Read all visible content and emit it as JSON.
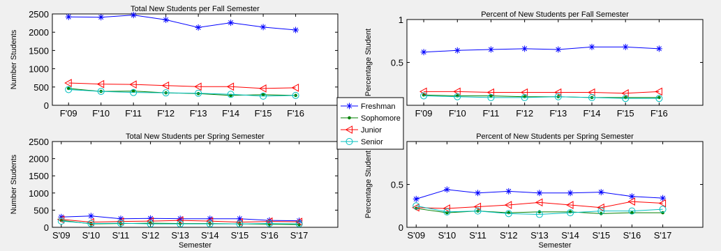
{
  "legend": {
    "placement": "center",
    "entries": [
      {
        "name": "Freshman",
        "color": "#0000ff",
        "marker": "star"
      },
      {
        "name": "Sophomore",
        "color": "#008000",
        "marker": "dot"
      },
      {
        "name": "Junior",
        "color": "#ff0000",
        "marker": "triangle-left"
      },
      {
        "name": "Senior",
        "color": "#00bfbf",
        "marker": "circle"
      }
    ]
  },
  "chart_data": [
    {
      "id": "fall-total",
      "type": "line",
      "title": "Total New Students per Fall Semester",
      "xlabel": "",
      "ylabel": "Number Students",
      "categories": [
        "F'09",
        "F'10",
        "F'11",
        "F'12",
        "F'13",
        "F'14",
        "F'15",
        "F'16"
      ],
      "x": [
        0.5,
        1,
        1.5,
        2,
        2.5,
        3,
        3.5,
        4,
        4.5,
        5,
        5.5,
        6,
        6.5,
        7,
        7.5,
        8
      ],
      "xlim": [
        0,
        8.8
      ],
      "ylim": [
        0,
        2500
      ],
      "yticks": [
        0,
        500,
        1000,
        1500,
        2000,
        2500
      ],
      "grid": false,
      "series": [
        {
          "name": "Freshman",
          "x": [
            0.5,
            1.5,
            2.5,
            3.5,
            4.5,
            5.5,
            6.5,
            7.5
          ],
          "values": [
            2420,
            2410,
            2470,
            2340,
            2130,
            2260,
            2140,
            2060
          ]
        },
        {
          "name": "Sophomore",
          "x": [
            0.5,
            1.5,
            2.5,
            3.5,
            4.5,
            5.5,
            6.5,
            7.5
          ],
          "values": [
            460,
            380,
            390,
            340,
            320,
            270,
            290,
            270
          ]
        },
        {
          "name": "Junior",
          "x": [
            0.5,
            1.5,
            2.5,
            3.5,
            4.5,
            5.5,
            6.5,
            7.5
          ],
          "values": [
            610,
            580,
            570,
            540,
            510,
            510,
            460,
            480
          ]
        },
        {
          "name": "Senior",
          "x": [
            0.5,
            1.5,
            2.5,
            3.5,
            4.5,
            5.5,
            6.5,
            7.5
          ],
          "values": [
            430,
            380,
            350,
            340,
            330,
            300,
            250,
            270
          ]
        }
      ]
    },
    {
      "id": "fall-percent",
      "type": "line",
      "title": "Percent of New Students per Fall Semester",
      "xlabel": "",
      "ylabel": "Percentage Student",
      "categories": [
        "F'09",
        "F'10",
        "F'11",
        "F'12",
        "F'13",
        "F'14",
        "F'15",
        "F'16"
      ],
      "xlim": [
        0,
        8.8
      ],
      "ylim": [
        0,
        1
      ],
      "yticks": [
        0,
        0.5,
        1
      ],
      "grid": false,
      "series": [
        {
          "name": "Freshman",
          "x": [
            0.5,
            1.5,
            2.5,
            3.5,
            4.5,
            5.5,
            6.5,
            7.5
          ],
          "values": [
            0.62,
            0.64,
            0.65,
            0.66,
            0.65,
            0.68,
            0.68,
            0.66
          ]
        },
        {
          "name": "Sophomore",
          "x": [
            0.5,
            1.5,
            2.5,
            3.5,
            4.5,
            5.5,
            6.5,
            7.5
          ],
          "values": [
            0.12,
            0.11,
            0.11,
            0.1,
            0.1,
            0.09,
            0.09,
            0.09
          ]
        },
        {
          "name": "Junior",
          "x": [
            0.5,
            1.5,
            2.5,
            3.5,
            4.5,
            5.5,
            6.5,
            7.5
          ],
          "values": [
            0.16,
            0.16,
            0.15,
            0.15,
            0.15,
            0.15,
            0.14,
            0.16
          ]
        },
        {
          "name": "Senior",
          "x": [
            0.5,
            1.5,
            2.5,
            3.5,
            4.5,
            5.5,
            6.5,
            7.5
          ],
          "values": [
            0.11,
            0.1,
            0.09,
            0.09,
            0.1,
            0.09,
            0.08,
            0.08
          ]
        }
      ]
    },
    {
      "id": "spring-total",
      "type": "line",
      "title": "Total New Students per Spring Semester",
      "xlabel": "Semester",
      "ylabel": "Number Students",
      "categories": [
        "S'09",
        "S'10",
        "S'11",
        "S'12",
        "S'13",
        "S'14",
        "S'15",
        "S'16",
        "S'17"
      ],
      "xlim": [
        0,
        9.6
      ],
      "ylim": [
        0,
        2500
      ],
      "yticks": [
        0,
        500,
        1000,
        1500,
        2000,
        2500
      ],
      "grid": false,
      "series": [
        {
          "name": "Freshman",
          "x": [
            0.3,
            1.3,
            2.3,
            3.3,
            4.3,
            5.3,
            6.3,
            7.3,
            8.3
          ],
          "values": [
            300,
            330,
            250,
            260,
            250,
            250,
            250,
            200,
            190
          ]
        },
        {
          "name": "Sophomore",
          "x": [
            0.3,
            1.3,
            2.3,
            3.3,
            4.3,
            5.3,
            6.3,
            7.3,
            8.3
          ],
          "values": [
            200,
            100,
            110,
            120,
            110,
            110,
            100,
            90,
            80
          ]
        },
        {
          "name": "Junior",
          "x": [
            0.3,
            1.3,
            2.3,
            3.3,
            4.3,
            5.3,
            6.3,
            7.3,
            8.3
          ],
          "values": [
            230,
            150,
            170,
            180,
            200,
            180,
            150,
            170,
            160
          ]
        },
        {
          "name": "Senior",
          "x": [
            0.3,
            1.3,
            2.3,
            3.3,
            4.3,
            5.3,
            6.3,
            7.3,
            8.3
          ],
          "values": [
            180,
            110,
            120,
            100,
            100,
            100,
            100,
            110,
            100
          ]
        }
      ]
    },
    {
      "id": "spring-percent",
      "type": "line",
      "title": "Percent of New Students per Spring Semester",
      "xlabel": "Semester",
      "ylabel": "Percentage Student",
      "categories": [
        "S'09",
        "S'10",
        "S'11",
        "S'12",
        "S'13",
        "S'14",
        "S'15",
        "S'16",
        "S'17"
      ],
      "xlim": [
        0,
        9.6
      ],
      "ylim": [
        0,
        1
      ],
      "yticks": [
        0,
        0.5,
        1
      ],
      "grid": false,
      "series": [
        {
          "name": "Freshman",
          "x": [
            0.3,
            1.3,
            2.3,
            3.3,
            4.3,
            5.3,
            6.3,
            7.3,
            8.3
          ],
          "values": [
            0.33,
            0.44,
            0.4,
            0.42,
            0.4,
            0.4,
            0.41,
            0.36,
            0.34
          ]
        },
        {
          "name": "Sophomore",
          "x": [
            0.3,
            1.3,
            2.3,
            3.3,
            4.3,
            5.3,
            6.3,
            7.3,
            8.3
          ],
          "values": [
            0.22,
            0.17,
            0.19,
            0.17,
            0.18,
            0.18,
            0.16,
            0.17,
            0.17
          ]
        },
        {
          "name": "Junior",
          "x": [
            0.3,
            1.3,
            2.3,
            3.3,
            4.3,
            5.3,
            6.3,
            7.3,
            8.3
          ],
          "values": [
            0.23,
            0.22,
            0.24,
            0.26,
            0.29,
            0.26,
            0.23,
            0.3,
            0.28
          ]
        },
        {
          "name": "Senior",
          "x": [
            0.3,
            1.3,
            2.3,
            3.3,
            4.3,
            5.3,
            6.3,
            7.3,
            8.3
          ],
          "values": [
            0.25,
            0.18,
            0.19,
            0.16,
            0.15,
            0.17,
            0.19,
            0.19,
            0.21
          ]
        }
      ]
    }
  ]
}
